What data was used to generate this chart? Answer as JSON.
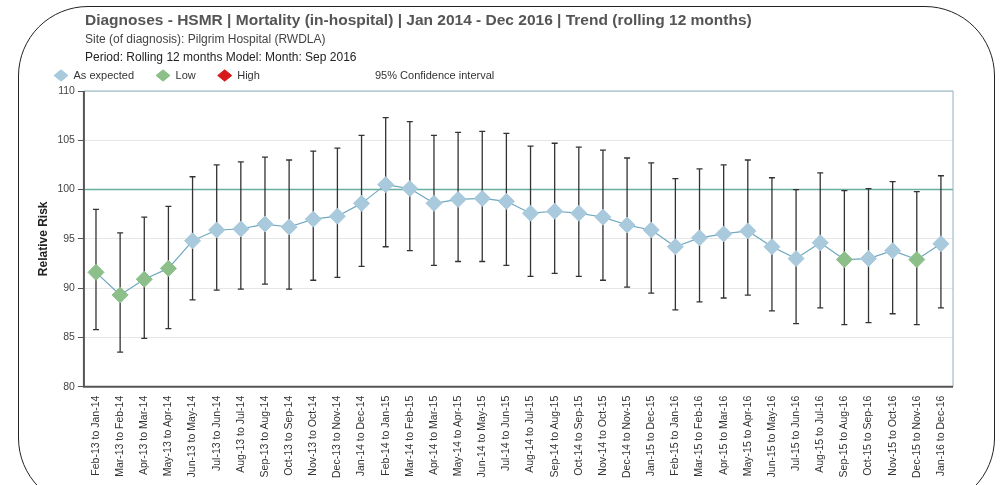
{
  "chart_data": {
    "type": "line",
    "title": "Diagnoses - HSMR | Mortality (in-hospital) | Jan 2014 - Dec 2016 | Trend (rolling 12 months)",
    "subtitle": "Site (of diagnosis): Pilgrim Hospital (RWDLA)",
    "annotations": [
      "Period: Rolling 12 months   Model: Month: Sep 2016",
      "95% Confidence interval"
    ],
    "ylabel": "Relative Risk",
    "categories": [
      "Feb-13 to Jan-14",
      "Mar-13 to Feb-14",
      "Apr-13 to Mar-14",
      "May-13 to Apr-14",
      "Jun-13 to May-14",
      "Jul-13 to Jun-14",
      "Aug-13 to Jul-14",
      "Sep-13 to Aug-14",
      "Oct-13 to Sep-14",
      "Nov-13 to Oct-14",
      "Dec-13 to Nov-14",
      "Jan-14 to Dec-14",
      "Feb-14 to Jan-15",
      "Mar-14 to Feb-15",
      "Apr-14 to Mar-15",
      "May-14 to Apr-15",
      "Jun-14 to May-15",
      "Jul-14 to Jun-15",
      "Aug-14 to Jul-15",
      "Sep-14 to Aug-15",
      "Oct-14 to Sep-15",
      "Nov-14 to Oct-15",
      "Dec-14 to Nov-15",
      "Jan-15 to Dec-15",
      "Feb-15 to Jan-16",
      "Mar-15 to Feb-16",
      "Apr-15 to Mar-16",
      "May-15 to Apr-16",
      "Jun-15 to May-16",
      "Jul-15 to Jun-16",
      "Aug-15 to Jul-16",
      "Sep-15 to Aug-16",
      "Oct-15 to Sep-16",
      "Nov-15 to Oct-16",
      "Dec-15 to Nov-16",
      "Jan-16 to Dec-16"
    ],
    "series": [
      {
        "type": "line",
        "color": "#6fa8c0",
        "marker": "none",
        "values": [
          91.6,
          89.3,
          90.9,
          92.0,
          94.8,
          95.9,
          96.0,
          96.5,
          96.2,
          97.0,
          97.3,
          98.6,
          100.5,
          100.1,
          98.6,
          99.0,
          99.1,
          98.8,
          97.6,
          97.8,
          97.6,
          97.2,
          96.4,
          95.9,
          94.2,
          95.1,
          95.5,
          95.8,
          94.2,
          93.0,
          94.6,
          92.9,
          93.0,
          93.8,
          92.9,
          94.5
        ],
        "errors": [
          [
            85.8,
            98.0
          ],
          [
            83.5,
            95.6
          ],
          [
            84.9,
            97.2
          ],
          [
            85.9,
            98.3
          ],
          [
            88.8,
            101.3
          ],
          [
            89.8,
            102.5
          ],
          [
            89.9,
            102.8
          ],
          [
            90.4,
            103.3
          ],
          [
            89.9,
            103.0
          ],
          [
            90.8,
            103.9
          ],
          [
            91.1,
            104.2
          ],
          [
            92.2,
            105.5
          ],
          [
            94.2,
            107.3
          ],
          [
            93.8,
            106.9
          ],
          [
            92.3,
            105.5
          ],
          [
            92.7,
            105.8
          ],
          [
            92.7,
            105.9
          ],
          [
            92.3,
            105.7
          ],
          [
            91.2,
            104.4
          ],
          [
            91.5,
            104.7
          ],
          [
            91.2,
            104.3
          ],
          [
            90.8,
            104.0
          ],
          [
            90.1,
            103.2
          ],
          [
            89.5,
            102.7
          ],
          [
            87.8,
            101.1
          ],
          [
            88.6,
            102.1
          ],
          [
            89.0,
            102.5
          ],
          [
            89.3,
            103.0
          ],
          [
            87.7,
            101.2
          ],
          [
            86.4,
            100.0
          ],
          [
            88.0,
            101.7
          ],
          [
            86.3,
            99.9
          ],
          [
            86.5,
            100.1
          ],
          [
            87.4,
            100.8
          ],
          [
            86.3,
            99.8
          ],
          [
            88.0,
            101.4
          ]
        ]
      },
      {
        "type": "scatter",
        "name": "As expected",
        "color": "#a9c9dc",
        "marker": "diamond",
        "values": [
          null,
          null,
          null,
          null,
          94.8,
          95.9,
          96.0,
          96.5,
          96.2,
          97.0,
          97.3,
          98.6,
          100.5,
          100.1,
          98.6,
          99.0,
          99.1,
          98.8,
          97.6,
          97.8,
          97.6,
          97.2,
          96.4,
          95.9,
          94.2,
          95.1,
          95.5,
          95.8,
          94.2,
          93.0,
          94.6,
          null,
          93.0,
          93.8,
          null,
          94.5
        ]
      },
      {
        "type": "scatter",
        "name": "Low",
        "color": "#8cbf8a",
        "marker": "diamond",
        "values": [
          91.6,
          89.3,
          90.9,
          92.0,
          null,
          null,
          null,
          null,
          null,
          null,
          null,
          null,
          null,
          null,
          null,
          null,
          null,
          null,
          null,
          null,
          null,
          null,
          null,
          null,
          null,
          null,
          null,
          null,
          null,
          null,
          null,
          92.9,
          null,
          null,
          92.9,
          null
        ]
      },
      {
        "type": "scatter",
        "name": "High",
        "color": "#d7191c",
        "marker": "diamond",
        "values": [
          null,
          null,
          null,
          null,
          null,
          null,
          null,
          null,
          null,
          null,
          null,
          null,
          null,
          null,
          null,
          null,
          null,
          null,
          null,
          null,
          null,
          null,
          null,
          null,
          null,
          null,
          null,
          null,
          null,
          null,
          null,
          null,
          null,
          null,
          null,
          null
        ]
      }
    ],
    "ylim": [
      80,
      110
    ],
    "yticks": [
      80,
      85,
      90,
      95,
      100,
      105,
      110
    ],
    "ref_lines": [
      {
        "axis": "y",
        "value": 100,
        "color": "#6aaea0"
      }
    ],
    "grid": "y",
    "legend": "top left"
  }
}
